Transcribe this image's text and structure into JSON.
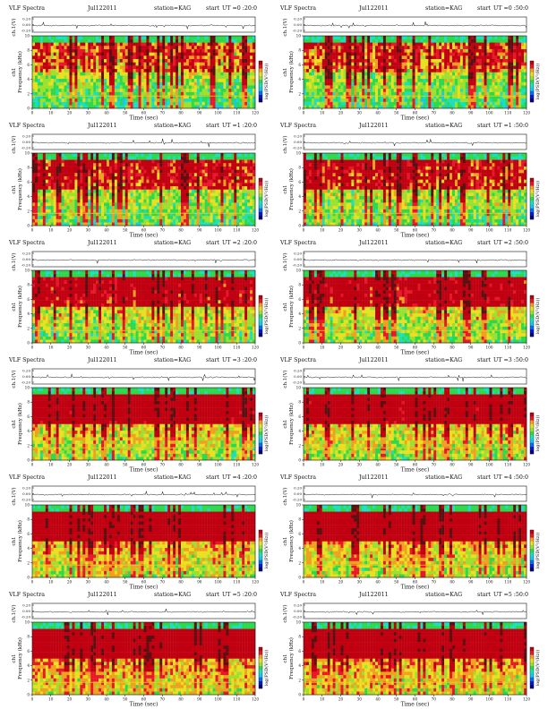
{
  "chart_data": [
    {
      "type": "heatmap",
      "title": "VLF Spectra",
      "date": "Jul122011",
      "station": "station=KAG",
      "start_label": "start",
      "ut": "UT =0 :20:0",
      "ch_label": "ch.1(V)",
      "ch_ticks": [
        "0.20",
        "0.00",
        "-0.20"
      ],
      "xlabel": "Time (sec)",
      "ylabel": "Frequency (kHz)",
      "ylabel_ch": "ch1",
      "colorbar_label": "log(PSD(V²/Hz))",
      "xlim": [
        0,
        120
      ],
      "ylim": [
        0,
        10
      ],
      "xticks": [
        "0",
        "10",
        "20",
        "30",
        "40",
        "50",
        "60",
        "70",
        "80",
        "90",
        "100",
        "110",
        "120"
      ],
      "yticks": [
        "0",
        "2",
        "4",
        "6",
        "8",
        "10"
      ]
    },
    {
      "type": "heatmap",
      "title": "VLF Spectra",
      "date": "Jul122011",
      "station": "station=KAG",
      "start_label": "start",
      "ut": "UT =0 :50:0",
      "ch_label": "ch.1(V)",
      "ch_ticks": [
        "0.20",
        "0.00",
        "-0.20"
      ],
      "xlabel": "Time (sec)",
      "ylabel": "Frequency (kHz)",
      "ylabel_ch": "ch1",
      "colorbar_label": "log(PSD(V²/Hz))",
      "xlim": [
        0,
        120
      ],
      "ylim": [
        0,
        10
      ],
      "xticks": [
        "0",
        "10",
        "20",
        "30",
        "40",
        "50",
        "60",
        "70",
        "80",
        "90",
        "100",
        "110",
        "120"
      ],
      "yticks": [
        "0",
        "2",
        "4",
        "6",
        "8",
        "10"
      ]
    },
    {
      "type": "heatmap",
      "title": "VLF Spectra",
      "date": "Jul122011",
      "station": "station=KAG",
      "start_label": "start",
      "ut": "UT =1 :20:0",
      "ch_label": "ch.1(V)",
      "ch_ticks": [
        "0.20",
        "0.00",
        "-0.20"
      ],
      "xlabel": "Time (sec)",
      "ylabel": "Frequency (kHz)",
      "ylabel_ch": "ch1",
      "colorbar_label": "log(PSD(V²/Hz))",
      "xlim": [
        0,
        120
      ],
      "ylim": [
        0,
        10
      ],
      "xticks": [
        "0",
        "10",
        "20",
        "30",
        "40",
        "50",
        "60",
        "70",
        "80",
        "90",
        "100",
        "110",
        "120"
      ],
      "yticks": [
        "0",
        "2",
        "4",
        "6",
        "8",
        "10"
      ]
    },
    {
      "type": "heatmap",
      "title": "VLF Spectra",
      "date": "Jul122011",
      "station": "station=KAG",
      "start_label": "start",
      "ut": "UT =1 :50:0",
      "ch_label": "ch.1(V)",
      "ch_ticks": [
        "0.20",
        "0.00",
        "-0.20"
      ],
      "xlabel": "Time (sec)",
      "ylabel": "Frequency (kHz)",
      "ylabel_ch": "ch1",
      "colorbar_label": "log(PSD(V²/Hz))",
      "xlim": [
        0,
        120
      ],
      "ylim": [
        0,
        10
      ],
      "xticks": [
        "0",
        "10",
        "20",
        "30",
        "40",
        "50",
        "60",
        "70",
        "80",
        "90",
        "100",
        "110",
        "120"
      ],
      "yticks": [
        "0",
        "2",
        "4",
        "6",
        "8",
        "10"
      ]
    },
    {
      "type": "heatmap",
      "title": "VLF Spectra",
      "date": "Jul122011",
      "station": "station=KAG",
      "start_label": "start",
      "ut": "UT =2 :20:0",
      "ch_label": "ch.1(V)",
      "ch_ticks": [
        "0.20",
        "0.00",
        "-0.20"
      ],
      "xlabel": "Time (sec)",
      "ylabel": "Frequency (kHz)",
      "ylabel_ch": "ch1",
      "colorbar_label": "log(PSD(V²/Hz))",
      "xlim": [
        0,
        120
      ],
      "ylim": [
        0,
        10
      ],
      "xticks": [
        "0",
        "10",
        "20",
        "30",
        "40",
        "50",
        "60",
        "70",
        "80",
        "90",
        "100",
        "110",
        "120"
      ],
      "yticks": [
        "0",
        "2",
        "4",
        "6",
        "8",
        "10"
      ]
    },
    {
      "type": "heatmap",
      "title": "VLF Spectra",
      "date": "Jul122011",
      "station": "station=KAG",
      "start_label": "start",
      "ut": "UT =2 :50:0",
      "ch_label": "ch.1(V)",
      "ch_ticks": [
        "0.20",
        "0.00",
        "-0.20"
      ],
      "xlabel": "Time (sec)",
      "ylabel": "Frequency (kHz)",
      "ylabel_ch": "ch1",
      "colorbar_label": "log(PSD(V²/Hz))",
      "xlim": [
        0,
        120
      ],
      "ylim": [
        0,
        10
      ],
      "xticks": [
        "0",
        "10",
        "20",
        "30",
        "40",
        "50",
        "60",
        "70",
        "80",
        "90",
        "100",
        "110",
        "120"
      ],
      "yticks": [
        "0",
        "2",
        "4",
        "6",
        "8",
        "10"
      ]
    },
    {
      "type": "heatmap",
      "title": "VLF Spectra",
      "date": "Jul122011",
      "station": "station=KAG",
      "start_label": "start",
      "ut": "UT =3 :20:0",
      "ch_label": "ch.1(V)",
      "ch_ticks": [
        "0.20",
        "0.00",
        "-0.20"
      ],
      "xlabel": "Time (sec)",
      "ylabel": "Frequency (kHz)",
      "ylabel_ch": "ch1",
      "colorbar_label": "log(PSD(V²/Hz))",
      "xlim": [
        0,
        120
      ],
      "ylim": [
        0,
        10
      ],
      "xticks": [
        "0",
        "10",
        "20",
        "30",
        "40",
        "50",
        "60",
        "70",
        "80",
        "90",
        "100",
        "110",
        "120"
      ],
      "yticks": [
        "0",
        "2",
        "4",
        "6",
        "8",
        "10"
      ]
    },
    {
      "type": "heatmap",
      "title": "VLF Spectra",
      "date": "Jul122011",
      "station": "station=KAG",
      "start_label": "start",
      "ut": "UT =3 :50:0",
      "ch_label": "ch.1(V)",
      "ch_ticks": [
        "0.20",
        "0.00",
        "-0.20"
      ],
      "xlabel": "Time (sec)",
      "ylabel": "Frequency (kHz)",
      "ylabel_ch": "ch1",
      "colorbar_label": "log(PSD(V²/Hz))",
      "xlim": [
        0,
        120
      ],
      "ylim": [
        0,
        10
      ],
      "xticks": [
        "0",
        "10",
        "20",
        "30",
        "40",
        "50",
        "60",
        "70",
        "80",
        "90",
        "100",
        "110",
        "120"
      ],
      "yticks": [
        "0",
        "2",
        "4",
        "6",
        "8",
        "10"
      ]
    },
    {
      "type": "heatmap",
      "title": "VLF Spectra",
      "date": "Jul122011",
      "station": "station=KAG",
      "start_label": "start",
      "ut": "UT =4 :20:0",
      "ch_label": "ch.1(V)",
      "ch_ticks": [
        "0.20",
        "0.00",
        "-0.20"
      ],
      "xlabel": "Time (sec)",
      "ylabel": "Frequency (kHz)",
      "ylabel_ch": "ch1",
      "colorbar_label": "log(PSD(V²/Hz))",
      "xlim": [
        0,
        120
      ],
      "ylim": [
        0,
        10
      ],
      "xticks": [
        "0",
        "10",
        "20",
        "30",
        "40",
        "50",
        "60",
        "70",
        "80",
        "90",
        "100",
        "110",
        "120"
      ],
      "yticks": [
        "0",
        "2",
        "4",
        "6",
        "8",
        "10"
      ]
    },
    {
      "type": "heatmap",
      "title": "VLF Spectra",
      "date": "Jul122011",
      "station": "station=KAG",
      "start_label": "start",
      "ut": "UT =4 :50:0",
      "ch_label": "ch.1(V)",
      "ch_ticks": [
        "0.20",
        "0.00",
        "-0.20"
      ],
      "xlabel": "Time (sec)",
      "ylabel": "Frequency (kHz)",
      "ylabel_ch": "ch1",
      "colorbar_label": "log(PSD(V²/Hz))",
      "xlim": [
        0,
        120
      ],
      "ylim": [
        0,
        10
      ],
      "xticks": [
        "0",
        "10",
        "20",
        "30",
        "40",
        "50",
        "60",
        "70",
        "80",
        "90",
        "100",
        "110",
        "120"
      ],
      "yticks": [
        "0",
        "2",
        "4",
        "6",
        "8",
        "10"
      ]
    },
    {
      "type": "heatmap",
      "title": "VLF Spectra",
      "date": "Jul122011",
      "station": "station=KAG",
      "start_label": "start",
      "ut": "UT =5 :20:0",
      "ch_label": "ch.1(V)",
      "ch_ticks": [
        "0.20",
        "0.00",
        "-0.20"
      ],
      "xlabel": "Time (sec)",
      "ylabel": "Frequency (kHz)",
      "ylabel_ch": "ch1",
      "colorbar_label": "log(PSD(V²/Hz))",
      "xlim": [
        0,
        120
      ],
      "ylim": [
        0,
        10
      ],
      "xticks": [
        "0",
        "10",
        "20",
        "30",
        "40",
        "50",
        "60",
        "70",
        "80",
        "90",
        "100",
        "110",
        "120"
      ],
      "yticks": [
        "0",
        "2",
        "4",
        "6",
        "8",
        "10"
      ]
    },
    {
      "type": "heatmap",
      "title": "VLF Spectra",
      "date": "Jul122011",
      "station": "station=KAG",
      "start_label": "start",
      "ut": "UT =5 :50:0",
      "ch_label": "ch.1(V)",
      "ch_ticks": [
        "0.20",
        "0.00",
        "-0.20"
      ],
      "xlabel": "Time (sec)",
      "ylabel": "Frequency (kHz)",
      "ylabel_ch": "ch1",
      "colorbar_label": "log(PSD(V²/Hz))",
      "xlim": [
        0,
        120
      ],
      "ylim": [
        0,
        10
      ],
      "xticks": [
        "0",
        "10",
        "20",
        "30",
        "40",
        "50",
        "60",
        "70",
        "80",
        "90",
        "100",
        "110",
        "120"
      ],
      "yticks": [
        "0",
        "2",
        "4",
        "6",
        "8",
        "10"
      ]
    }
  ],
  "colors": {
    "blue": "#0018d8",
    "cyan": "#1ae0e0",
    "green": "#2cd84c",
    "yellow": "#e8e020",
    "red": "#e8182a",
    "white": "#ffffff",
    "axis": "#111111"
  }
}
